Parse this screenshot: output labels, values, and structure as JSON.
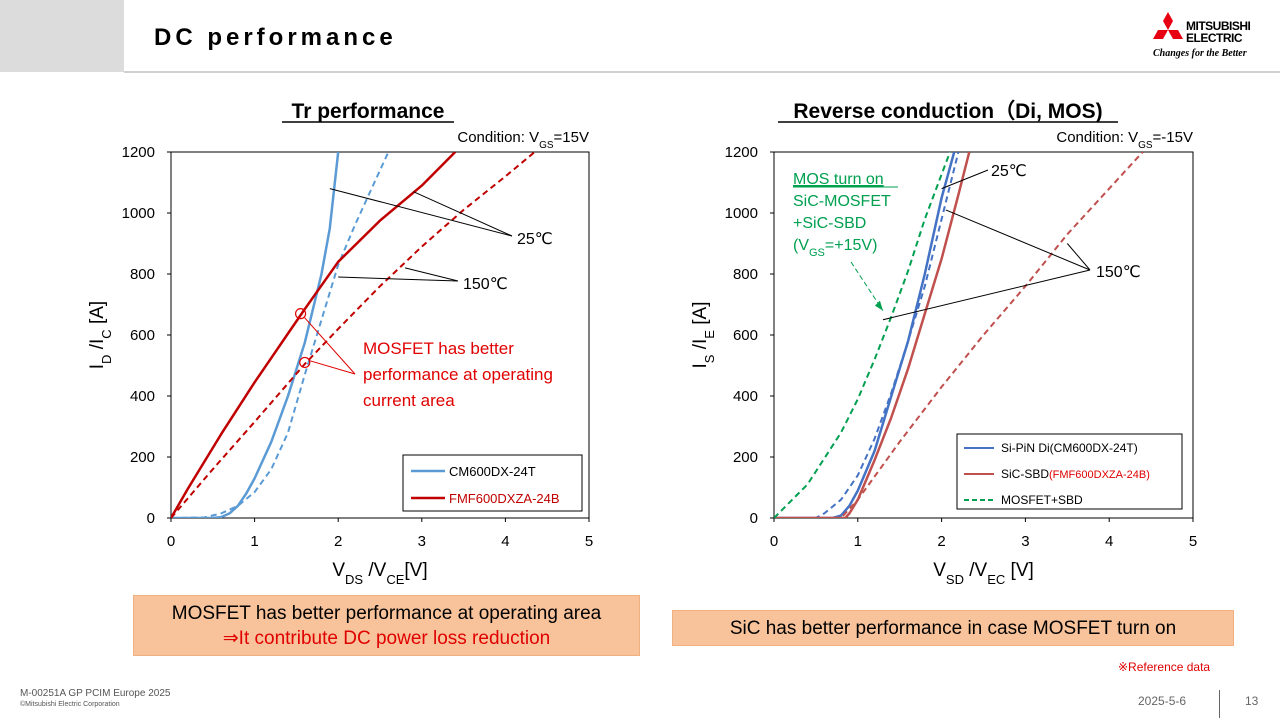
{
  "header": {
    "title": "DC performance"
  },
  "logo": {
    "name_line1": "MITSUBISHI",
    "name_line2": "ELECTRIC",
    "tagline": "Changes for the Better"
  },
  "chart_data": [
    {
      "type": "line",
      "title": "Tr performance",
      "condition": {
        "prefix": "Condition: V",
        "sub": "GS",
        "suffix": "=15V"
      },
      "xlabel": {
        "a": "V",
        "a_sub": "DS",
        "b": " /V",
        "b_sub": "CE",
        "c": "[V]"
      },
      "ylabel": {
        "a": "I",
        "a_sub": "D",
        "b": " /I",
        "b_sub": "C",
        "c": " [A]"
      },
      "xlim": [
        0,
        5
      ],
      "ylim": [
        0,
        1200
      ],
      "xticks": [
        0,
        1,
        2,
        3,
        4,
        5
      ],
      "yticks": [
        0,
        200,
        400,
        600,
        800,
        1000,
        1200
      ],
      "grid": false,
      "legend_position": "bottom-right",
      "series": [
        {
          "name": "CM600DX-24T",
          "color": "#5b9bd5",
          "dash": false,
          "legend": true,
          "points": [
            [
              0,
              0
            ],
            [
              0.5,
              0
            ],
            [
              0.6,
              3
            ],
            [
              0.7,
              15
            ],
            [
              0.8,
              40
            ],
            [
              0.9,
              80
            ],
            [
              1.0,
              130
            ],
            [
              1.2,
              250
            ],
            [
              1.4,
              400
            ],
            [
              1.6,
              575
            ],
            [
              1.8,
              800
            ],
            [
              1.9,
              950
            ],
            [
              2.0,
              1200
            ]
          ]
        },
        {
          "name": "",
          "color": "#5b9bd5",
          "dash": true,
          "legend": false,
          "points": [
            [
              0,
              0
            ],
            [
              0.4,
              2
            ],
            [
              0.6,
              15
            ],
            [
              0.8,
              40
            ],
            [
              1.0,
              85
            ],
            [
              1.2,
              160
            ],
            [
              1.4,
              280
            ],
            [
              1.6,
              470
            ],
            [
              1.8,
              650
            ],
            [
              2.0,
              830
            ],
            [
              2.2,
              960
            ],
            [
              2.4,
              1080
            ],
            [
              2.6,
              1200
            ]
          ]
        },
        {
          "name": "FMF600DXZA-24B",
          "color": "#c00000",
          "dash": false,
          "legend": true,
          "points": [
            [
              0,
              0
            ],
            [
              0.2,
              95
            ],
            [
              0.4,
              185
            ],
            [
              0.6,
              275
            ],
            [
              0.8,
              360
            ],
            [
              1.0,
              445
            ],
            [
              1.2,
              525
            ],
            [
              1.4,
              605
            ],
            [
              1.6,
              685
            ],
            [
              2.0,
              840
            ],
            [
              2.5,
              975
            ],
            [
              3.0,
              1090
            ],
            [
              3.4,
              1200
            ]
          ]
        },
        {
          "name": "",
          "color": "#c00000",
          "dash": true,
          "legend": false,
          "points": [
            [
              0,
              0
            ],
            [
              0.5,
              160
            ],
            [
              1.0,
              315
            ],
            [
              1.6,
              505
            ],
            [
              2.0,
              620
            ],
            [
              2.5,
              760
            ],
            [
              3.0,
              890
            ],
            [
              3.5,
              1010
            ],
            [
              4.0,
              1120
            ],
            [
              4.35,
              1200
            ]
          ]
        }
      ],
      "temp_labels": [
        "25℃",
        "150℃"
      ],
      "annotation": [
        "MOSFET has better",
        "performance at operating",
        "current area"
      ]
    },
    {
      "type": "line",
      "title": "Reverse conduction（Di, MOS)",
      "condition": {
        "prefix": "Condition: V",
        "sub": "GS",
        "suffix": "=-15V"
      },
      "xlabel": {
        "a": "V",
        "a_sub": "SD",
        "b": " /V",
        "b_sub": "EC",
        "c": " [V]"
      },
      "ylabel": {
        "a": "I",
        "a_sub": "S",
        "b": " /I",
        "b_sub": "E",
        "c": " [A]"
      },
      "xlim": [
        0,
        5
      ],
      "ylim": [
        0,
        1200
      ],
      "xticks": [
        0,
        1,
        2,
        3,
        4,
        5
      ],
      "yticks": [
        0,
        200,
        400,
        600,
        800,
        1000,
        1200
      ],
      "grid": false,
      "legend_position": "bottom-right",
      "series": [
        {
          "name": "Si-PiN Di",
          "color": "#4472c4",
          "dash": false,
          "points": [
            [
              0,
              0
            ],
            [
              0.7,
              0
            ],
            [
              0.8,
              8
            ],
            [
              0.9,
              40
            ],
            [
              1.0,
              90
            ],
            [
              1.2,
              220
            ],
            [
              1.4,
              400
            ],
            [
              1.6,
              580
            ],
            [
              1.8,
              800
            ],
            [
              2.0,
              1050
            ],
            [
              2.15,
              1200
            ]
          ]
        },
        {
          "name": "",
          "color": "#4472c4",
          "dash": true,
          "points": [
            [
              0,
              0
            ],
            [
              0.5,
              0
            ],
            [
              0.6,
              15
            ],
            [
              0.8,
              60
            ],
            [
              1.0,
              140
            ],
            [
              1.2,
              260
            ],
            [
              1.4,
              410
            ],
            [
              1.6,
              580
            ],
            [
              1.8,
              760
            ],
            [
              2.0,
              980
            ],
            [
              2.2,
              1200
            ]
          ]
        },
        {
          "name": "SiC-SBD",
          "color": "#c0504d",
          "dash": false,
          "points": [
            [
              0,
              0
            ],
            [
              0.85,
              0
            ],
            [
              0.9,
              15
            ],
            [
              1.0,
              60
            ],
            [
              1.2,
              190
            ],
            [
              1.4,
              330
            ],
            [
              1.6,
              490
            ],
            [
              1.8,
              670
            ],
            [
              2.0,
              850
            ],
            [
              2.2,
              1060
            ],
            [
              2.33,
              1200
            ]
          ]
        },
        {
          "name": "",
          "color": "#c0504d",
          "dash": true,
          "points": [
            [
              0,
              0
            ],
            [
              0.8,
              0
            ],
            [
              1.0,
              60
            ],
            [
              1.5,
              250
            ],
            [
              2.0,
              430
            ],
            [
              2.5,
              600
            ],
            [
              3.0,
              760
            ],
            [
              3.5,
              930
            ],
            [
              4.0,
              1080
            ],
            [
              4.4,
              1200
            ]
          ]
        },
        {
          "name": "MOSFET+SBD",
          "color": "#00a050",
          "dash": true,
          "points": [
            [
              0,
              0
            ],
            [
              0.4,
              110
            ],
            [
              0.8,
              280
            ],
            [
              1.0,
              390
            ],
            [
              1.2,
              520
            ],
            [
              1.4,
              660
            ],
            [
              1.6,
              810
            ],
            [
              1.8,
              980
            ],
            [
              2.1,
              1200
            ]
          ]
        }
      ],
      "legend_entries": [
        {
          "label": "Si-PiN Di",
          "part_label": "(CM600DX-24T)",
          "color": "#4472c4",
          "dash": false,
          "part_color": "#000000"
        },
        {
          "label": "SiC-SBD",
          "part_label": "(FMF600DXZA-24B)",
          "color": "#c0504d",
          "dash": false,
          "part_color": "#e00000"
        },
        {
          "label": "MOSFET+SBD",
          "part_label": "",
          "color": "#00a050",
          "dash": true,
          "part_color": "#000000"
        }
      ],
      "temp_labels": [
        "25℃",
        "150℃"
      ],
      "annotation": {
        "line1": "MOS turn on",
        "line2": "SiC-MOSFET",
        "line3": "+SiC-SBD",
        "line4_a": "(V",
        "line4_sub": "GS",
        "line4_b": "=+15V)"
      }
    }
  ],
  "summary_left": {
    "line1": "MOSFET has better performance at operating area",
    "line2": "⇒It contribute DC power loss reduction"
  },
  "summary_right": "SiC has better performance in case MOSFET turn on",
  "reference_note": "※Reference data",
  "footer": {
    "code": "M-00251A GP PCIM Europe 2025",
    "copyright": "©Mitsubishi Electric Corporation",
    "date": "2025-5-6",
    "page": "13"
  }
}
